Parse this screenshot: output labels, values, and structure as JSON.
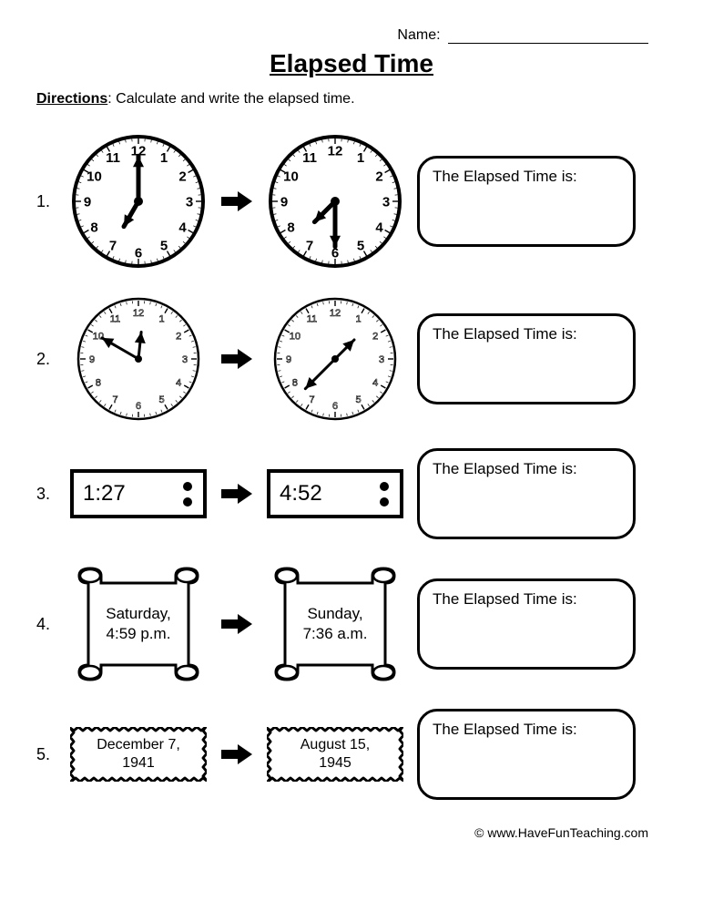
{
  "header": {
    "name_label": "Name:",
    "title": "Elapsed Time",
    "directions_label": "Directions",
    "directions_text": ":  Calculate and write the elapsed time."
  },
  "answer_box_label": "The Elapsed Time is:",
  "questions": [
    {
      "num": "1.",
      "type": "analog_bold",
      "from": {
        "hour_angle": 210,
        "minute_angle": 0
      },
      "to": {
        "hour_angle": 225,
        "minute_angle": 180
      }
    },
    {
      "num": "2.",
      "type": "analog_outline",
      "from": {
        "hour_angle": 6,
        "minute_angle": 300
      },
      "to": {
        "hour_angle": 45,
        "minute_angle": 225
      }
    },
    {
      "num": "3.",
      "type": "digital",
      "from_text": "1:27",
      "to_text": "4:52"
    },
    {
      "num": "4.",
      "type": "scroll",
      "from_line1": "Saturday,",
      "from_line2": "4:59 p.m.",
      "to_line1": "Sunday,",
      "to_line2": "7:36 a.m."
    },
    {
      "num": "5.",
      "type": "plaque",
      "from_line1": "December 7,",
      "from_line2": "1941",
      "to_line1": "August 15,",
      "to_line2": "1945"
    }
  ],
  "credit": "© www.HaveFunTeaching.com",
  "style": {
    "stroke": "#000000",
    "bg": "#ffffff",
    "clock_radius": 70,
    "tick_font_bold": 15,
    "tick_font_outline": 11
  }
}
